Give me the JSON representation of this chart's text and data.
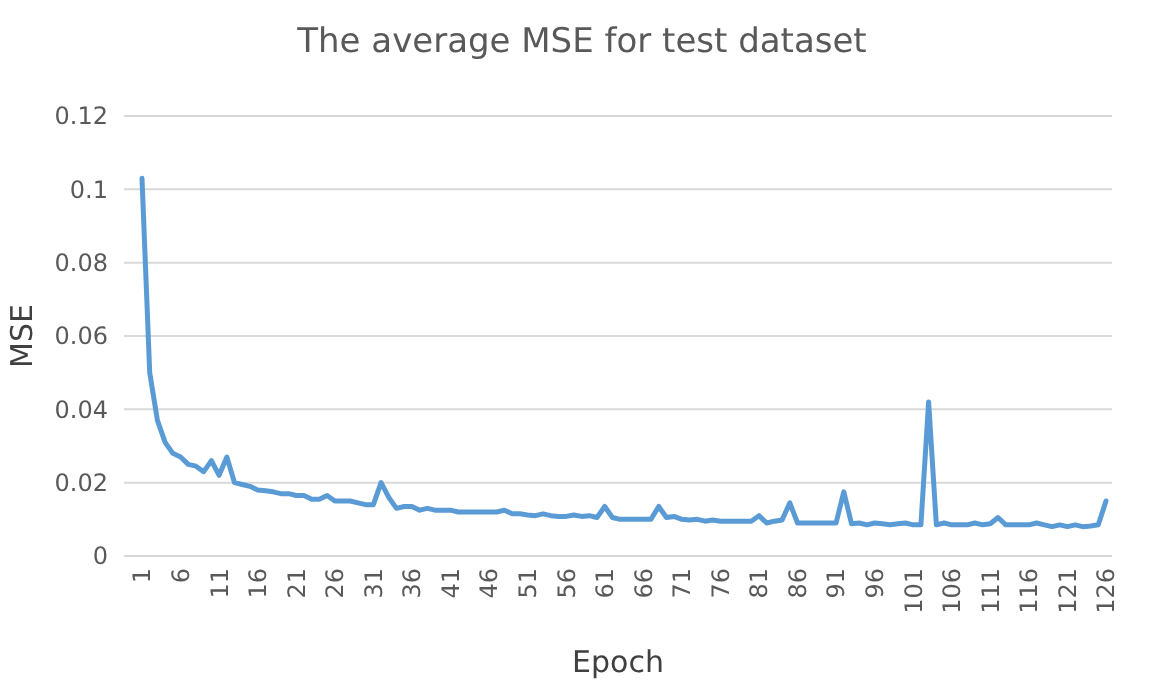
{
  "chart_data": {
    "type": "line",
    "title": "The average MSE for test dataset",
    "xlabel": "Epoch",
    "ylabel": "MSE",
    "categories": [
      "1",
      null,
      null,
      null,
      null,
      "6",
      null,
      null,
      null,
      null,
      "11",
      null,
      null,
      null,
      null,
      "16",
      null,
      null,
      null,
      null,
      "21",
      null,
      null,
      null,
      null,
      "26",
      null,
      null,
      null,
      null,
      "31",
      null,
      null,
      null,
      null,
      "36",
      null,
      null,
      null,
      null,
      "41",
      null,
      null,
      null,
      null,
      "46",
      null,
      null,
      null,
      null,
      "51",
      null,
      null,
      null,
      null,
      "56",
      null,
      null,
      null,
      null,
      "61",
      null,
      null,
      null,
      null,
      "66",
      null,
      null,
      null,
      null,
      "71",
      null,
      null,
      null,
      null,
      "76",
      null,
      null,
      null,
      null,
      "81",
      null,
      null,
      null,
      null,
      "86",
      null,
      null,
      null,
      null,
      "91",
      null,
      null,
      null,
      null,
      "96",
      null,
      null,
      null,
      null,
      "101",
      null,
      null,
      null,
      null,
      "106",
      null,
      null,
      null,
      null,
      "111",
      null,
      null,
      null,
      null,
      "116",
      null,
      null,
      null,
      null,
      "121",
      null,
      null,
      null,
      null,
      "126"
    ],
    "series": [
      {
        "color": "#5b9bd5",
        "values": [
          0.103,
          0.05,
          0.037,
          0.031,
          0.028,
          0.027,
          0.025,
          0.0245,
          0.023,
          0.026,
          0.022,
          0.027,
          0.02,
          0.0195,
          0.019,
          0.018,
          0.0178,
          0.0175,
          0.017,
          0.017,
          0.0165,
          0.0165,
          0.0155,
          0.0155,
          0.0165,
          0.015,
          0.015,
          0.015,
          0.0145,
          0.014,
          0.014,
          0.02,
          0.016,
          0.013,
          0.0135,
          0.0135,
          0.0125,
          0.013,
          0.0125,
          0.0125,
          0.0125,
          0.012,
          0.012,
          0.012,
          0.012,
          0.012,
          0.012,
          0.0125,
          0.0115,
          0.0115,
          0.0112,
          0.011,
          0.0115,
          0.011,
          0.0108,
          0.0108,
          0.0112,
          0.0108,
          0.011,
          0.0105,
          0.0135,
          0.0105,
          0.01,
          0.01,
          0.01,
          0.01,
          0.01,
          0.0135,
          0.0105,
          0.0108,
          0.01,
          0.0098,
          0.01,
          0.0095,
          0.0098,
          0.0095,
          0.0095,
          0.0095,
          0.0095,
          0.0095,
          0.011,
          0.009,
          0.0095,
          0.0098,
          0.0145,
          0.009,
          0.009,
          0.009,
          0.009,
          0.009,
          0.009,
          0.0175,
          0.0088,
          0.009,
          0.0085,
          0.009,
          0.0088,
          0.0085,
          0.0088,
          0.009,
          0.0085,
          0.0085,
          0.042,
          0.0085,
          0.009,
          0.0085,
          0.0085,
          0.0085,
          0.009,
          0.0085,
          0.0088,
          0.0105,
          0.0085,
          0.0085,
          0.0085,
          0.0085,
          0.009,
          0.0085,
          0.008,
          0.0085,
          0.008,
          0.0085,
          0.008,
          0.0082,
          0.0085,
          0.015
        ]
      }
    ],
    "ylim": [
      0,
      0.12
    ],
    "yticks": [
      0,
      0.02,
      0.04,
      0.06,
      0.08,
      0.1,
      0.12
    ],
    "grid": "y",
    "marker": "none",
    "line_style": "solid"
  }
}
